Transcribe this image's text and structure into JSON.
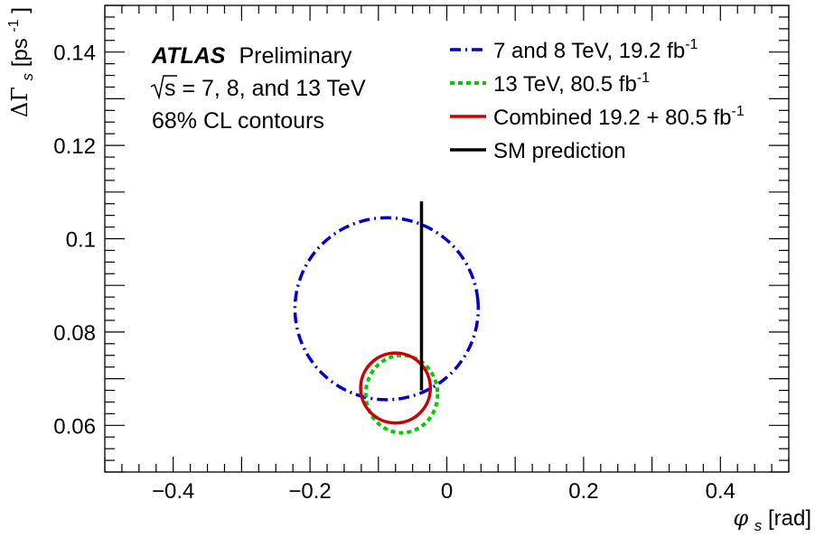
{
  "chart_data": {
    "type": "contour",
    "xlabel": "φ",
    "xlabel_sub": "s",
    "xlabel_unit": " [rad]",
    "ylabel": "ΔΓ",
    "ylabel_sub": "s",
    "ylabel_unit": " [ps",
    "ylabel_unit_sup": "-1",
    "ylabel_unit_close": "]",
    "xlim": [
      -0.5,
      0.5
    ],
    "ylim": [
      0.05,
      0.15
    ],
    "xticks": [
      -0.4,
      -0.2,
      0,
      0.2,
      0.4
    ],
    "xtick_labels": [
      "−0.4",
      "−0.2",
      "0",
      "0.2",
      "0.4"
    ],
    "yticks": [
      0.06,
      0.08,
      0.1,
      0.12,
      0.14
    ],
    "ytick_labels": [
      "0.06",
      "0.08",
      "0.1",
      "0.12",
      "0.14"
    ],
    "experiment": "ATLAS",
    "status": "Preliminary",
    "energy": "s = 7, 8, and 13 TeV",
    "contour_note": "68% CL contours",
    "legend_placement": "top-right",
    "series": [
      {
        "name": "7 and 8 TeV, 19.2 fb",
        "name_sup": "-1",
        "style": "dash-dot",
        "color": "#0000cc",
        "ellipse": {
          "cx": -0.088,
          "cy": 0.085,
          "rx": 0.134,
          "ry": 0.0195,
          "angle": -6
        }
      },
      {
        "name": "13 TeV, 80.5 fb",
        "name_sup": "-1",
        "style": "dotted",
        "color": "#00cc00",
        "ellipse": {
          "cx": -0.066,
          "cy": 0.0667,
          "rx": 0.0525,
          "ry": 0.0083,
          "angle": 0
        }
      },
      {
        "name": "Combined 19.2 + 80.5 fb",
        "name_sup": "-1",
        "style": "solid",
        "color": "#cc0000",
        "ellipse": {
          "cx": -0.075,
          "cy": 0.068,
          "rx": 0.051,
          "ry": 0.0075,
          "angle": 0
        }
      },
      {
        "name": "SM prediction",
        "name_sup": "",
        "style": "solid",
        "color": "#000000",
        "line": {
          "x": -0.037,
          "y0": 0.0675,
          "y1": 0.108
        }
      }
    ]
  }
}
